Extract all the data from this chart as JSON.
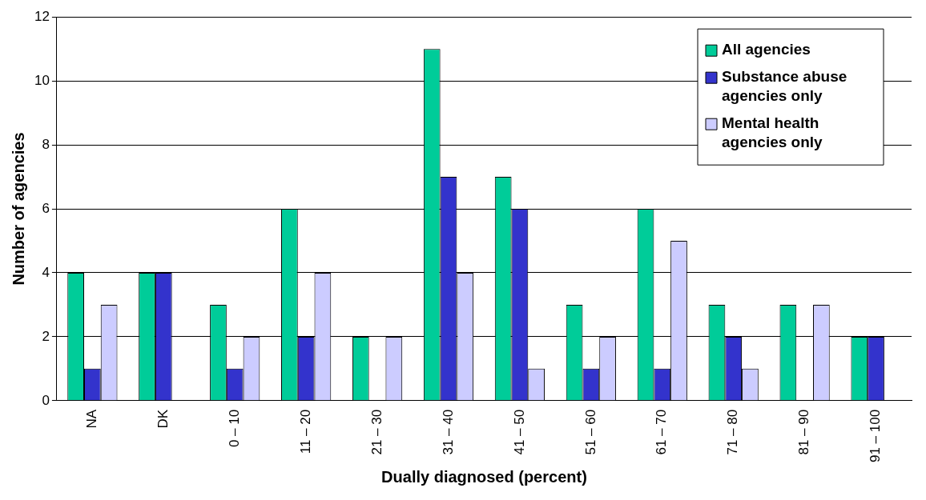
{
  "chart_data": {
    "type": "bar",
    "xlabel": "Dually diagnosed (percent)",
    "ylabel": "Number of agencies",
    "categories": [
      "NA",
      "DK",
      "0 – 10",
      "11 – 20",
      "21 – 30",
      "31 – 40",
      "41 – 50",
      "51 – 60",
      "61 – 70",
      "71 – 80",
      "81 – 90",
      "91 – 100"
    ],
    "series": [
      {
        "name": "All agencies",
        "color": "#00cc99",
        "values": [
          4,
          4,
          3,
          6,
          2,
          11,
          7,
          3,
          6,
          3,
          3,
          2
        ]
      },
      {
        "name": "Substance abuse agencies only",
        "color": "#3333cc",
        "values": [
          1,
          4,
          1,
          2,
          0,
          7,
          6,
          1,
          1,
          2,
          0,
          2
        ]
      },
      {
        "name": "Mental health agencies only",
        "color": "#ccccff",
        "values": [
          3,
          0,
          2,
          4,
          2,
          4,
          1,
          2,
          5,
          1,
          3,
          0
        ]
      }
    ],
    "ylim": [
      0,
      12
    ],
    "yticks": [
      0,
      2,
      4,
      6,
      8,
      10,
      12
    ],
    "grid": "y",
    "legend": "top right"
  }
}
